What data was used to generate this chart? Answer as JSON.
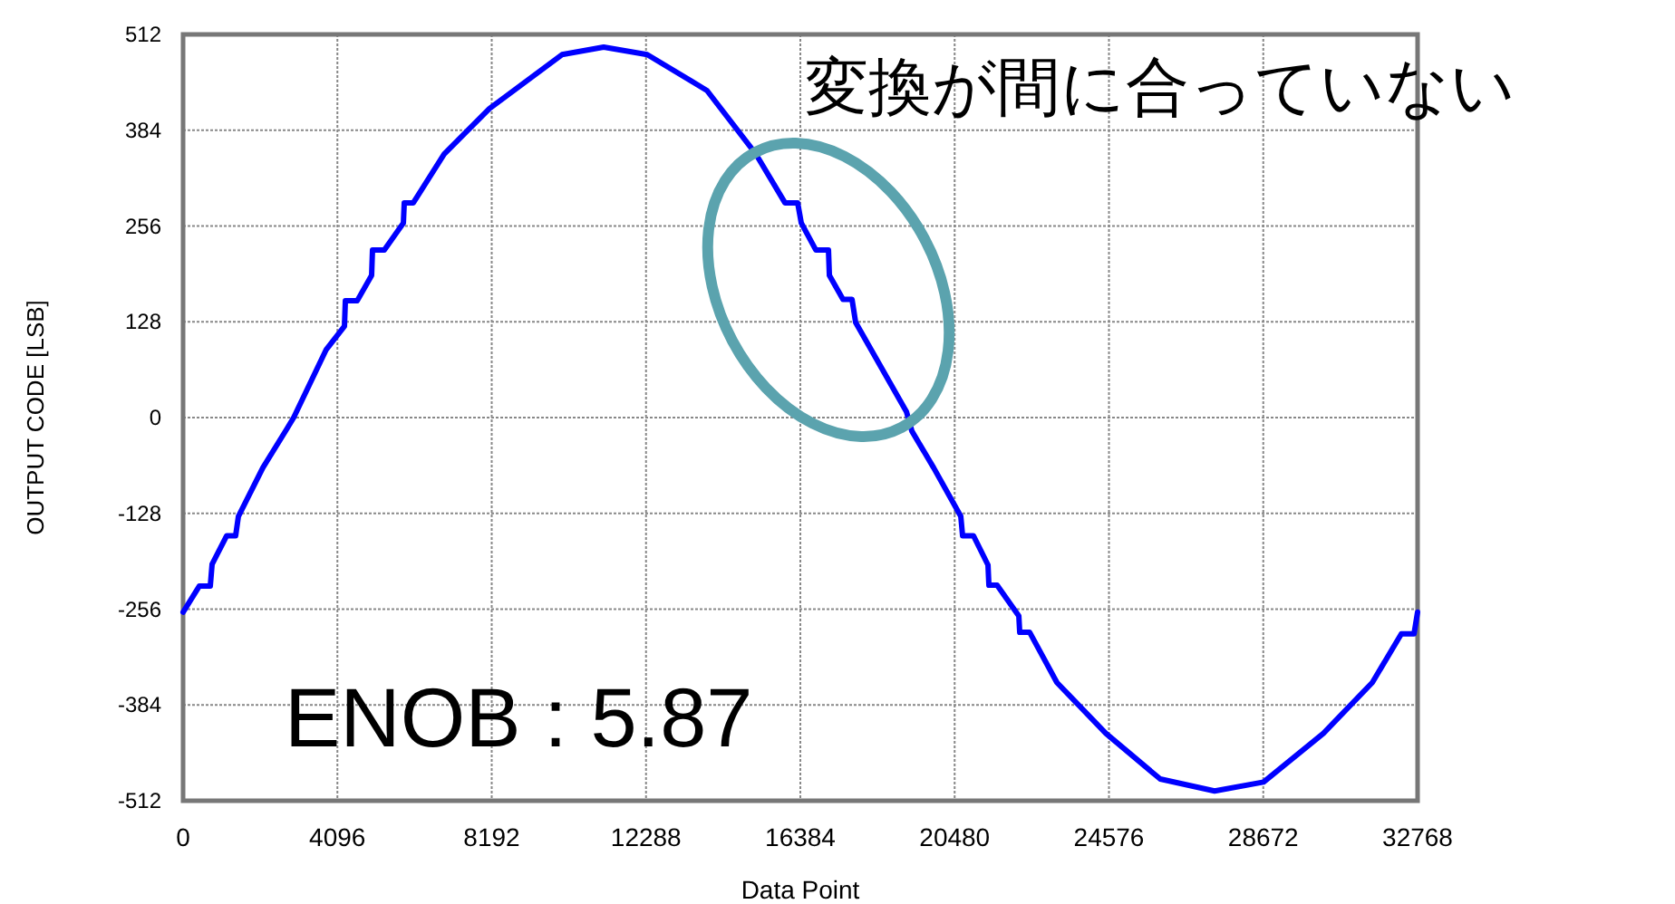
{
  "chart_data": {
    "type": "line",
    "xlabel": "Data Point",
    "ylabel": "OUTPUT CODE [LSB]",
    "xlim": [
      0,
      32768
    ],
    "ylim": [
      -512,
      512
    ],
    "xticks": [
      0,
      4096,
      8192,
      12288,
      16384,
      20480,
      24576,
      28672,
      32768
    ],
    "yticks": [
      -512,
      -384,
      -256,
      -128,
      0,
      128,
      256,
      384,
      512
    ],
    "grid": true,
    "marker": "none",
    "line_style": "solid",
    "annotations": [
      "変換が間に合っていない",
      "ENOB : 5.87"
    ],
    "series": [
      {
        "color": "#0000ff",
        "x": [
          0,
          433,
          722,
          770,
          1155,
          1395,
          1468,
          2117,
          2743,
          2935,
          3801,
          4283,
          4307,
          4620,
          5004,
          5028,
          5341,
          5847,
          5871,
          6111,
          6929,
          8132,
          10057,
          11164,
          12319,
          13907,
          15206,
          15976,
          16313,
          16409,
          16794,
          17131,
          17155,
          17516,
          17756,
          17852,
          19200,
          19344,
          19922,
          20643,
          20691,
          20980,
          21365,
          21389,
          21606,
          22183,
          22207,
          22472,
          23194,
          24493,
          25937,
          27380,
          28680,
          30268,
          31567,
          32337,
          32674,
          32768
        ],
        "values": [
          -260,
          -225,
          -225,
          -196,
          -158,
          -158,
          -132,
          -67,
          -16,
          0,
          91,
          122,
          156,
          156,
          190,
          224,
          224,
          260,
          287,
          287,
          352,
          413,
          485,
          495,
          485,
          437,
          352,
          287,
          287,
          260,
          224,
          224,
          190,
          158,
          158,
          127,
          8,
          -18,
          -67,
          -132,
          -158,
          -158,
          -197,
          -224,
          -224,
          -265,
          -287,
          -287,
          -354,
          -422,
          -483,
          -499,
          -487,
          -422,
          -354,
          -289,
          -289,
          -260
        ]
      }
    ]
  }
}
